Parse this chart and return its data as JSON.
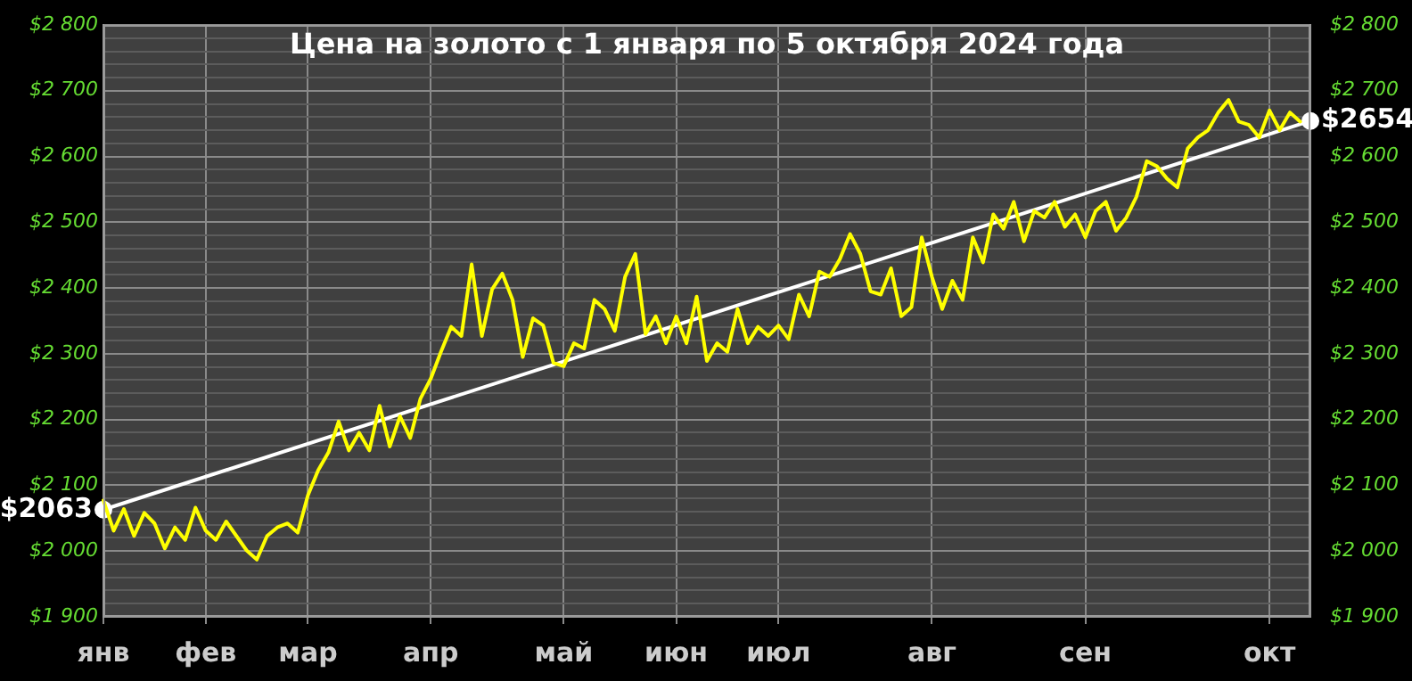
{
  "chart_data": {
    "type": "line",
    "title": "Цена на золото с 1 января по 5 октября 2024 года",
    "categories": [
      "янв",
      null,
      null,
      null,
      null,
      null,
      null,
      null,
      null,
      null,
      "фев",
      null,
      null,
      null,
      null,
      null,
      null,
      null,
      null,
      null,
      "мар",
      null,
      null,
      null,
      null,
      null,
      null,
      null,
      null,
      null,
      null,
      null,
      "апр",
      null,
      null,
      null,
      null,
      null,
      null,
      null,
      null,
      null,
      null,
      null,
      null,
      "май",
      null,
      null,
      null,
      null,
      null,
      null,
      null,
      null,
      null,
      null,
      "июн",
      null,
      null,
      null,
      null,
      null,
      null,
      null,
      null,
      null,
      "июл",
      null,
      null,
      null,
      null,
      null,
      null,
      null,
      null,
      null,
      null,
      null,
      null,
      null,
      null,
      "авг",
      null,
      null,
      null,
      null,
      null,
      null,
      null,
      null,
      null,
      null,
      null,
      null,
      null,
      null,
      "сен",
      null,
      null,
      null,
      null,
      null,
      null,
      null,
      null,
      null,
      null,
      null,
      null,
      null,
      null,
      null,
      null,
      null,
      "окт",
      null,
      null,
      null,
      null
    ],
    "series": [
      {
        "color": "#ffff00",
        "marker": "none",
        "values": [
          2077,
          2031,
          2064,
          2023,
          2058,
          2042,
          2004,
          2036,
          2017,
          2066,
          2031,
          2017,
          2045,
          2023,
          2001,
          1987,
          2023,
          2036,
          2042,
          2028,
          2085,
          2123,
          2150,
          2197,
          2153,
          2180,
          2153,
          2221,
          2159,
          2205,
          2172,
          2232,
          2262,
          2303,
          2341,
          2327,
          2436,
          2327,
          2398,
          2422,
          2382,
          2295,
          2354,
          2343,
          2286,
          2281,
          2316,
          2308,
          2382,
          2368,
          2335,
          2417,
          2452,
          2330,
          2357,
          2316,
          2357,
          2316,
          2387,
          2289,
          2316,
          2303,
          2368,
          2316,
          2341,
          2327,
          2343,
          2322,
          2390,
          2357,
          2425,
          2417,
          2444,
          2482,
          2452,
          2395,
          2390,
          2430,
          2357,
          2371,
          2477,
          2417,
          2368,
          2411,
          2382,
          2477,
          2439,
          2512,
          2490,
          2531,
          2471,
          2517,
          2507,
          2531,
          2493,
          2512,
          2477,
          2517,
          2531,
          2487,
          2507,
          2539,
          2593,
          2585,
          2566,
          2553,
          2612,
          2629,
          2640,
          2667,
          2686,
          2653,
          2648,
          2629,
          2670,
          2640,
          2667,
          2653,
          null
        ]
      },
      {
        "type": "line",
        "color": "#ffffff",
        "marker": "circle",
        "values": [
          2063,
          null,
          null,
          null,
          null,
          null,
          null,
          null,
          null,
          null,
          null,
          null,
          null,
          null,
          null,
          null,
          null,
          null,
          null,
          null,
          null,
          null,
          null,
          null,
          null,
          null,
          null,
          null,
          null,
          null,
          null,
          null,
          null,
          null,
          null,
          null,
          null,
          null,
          null,
          null,
          null,
          null,
          null,
          null,
          null,
          null,
          null,
          null,
          null,
          null,
          null,
          null,
          null,
          null,
          null,
          null,
          null,
          null,
          null,
          null,
          null,
          null,
          null,
          null,
          null,
          null,
          null,
          null,
          null,
          null,
          null,
          null,
          null,
          null,
          null,
          null,
          null,
          null,
          null,
          null,
          null,
          null,
          null,
          null,
          null,
          null,
          null,
          null,
          null,
          null,
          null,
          null,
          null,
          null,
          null,
          null,
          null,
          null,
          null,
          null,
          null,
          null,
          null,
          null,
          null,
          null,
          null,
          null,
          null,
          null,
          null,
          null,
          null,
          null,
          null,
          null,
          null,
          null,
          2654
        ],
        "value_labels": [
          "$2063",
          null,
          null,
          null,
          null,
          null,
          null,
          null,
          null,
          null,
          null,
          null,
          null,
          null,
          null,
          null,
          null,
          null,
          null,
          null,
          null,
          null,
          null,
          null,
          null,
          null,
          null,
          null,
          null,
          null,
          null,
          null,
          null,
          null,
          null,
          null,
          null,
          null,
          null,
          null,
          null,
          null,
          null,
          null,
          null,
          null,
          null,
          null,
          null,
          null,
          null,
          null,
          null,
          null,
          null,
          null,
          null,
          null,
          null,
          null,
          null,
          null,
          null,
          null,
          null,
          null,
          null,
          null,
          null,
          null,
          null,
          null,
          null,
          null,
          null,
          null,
          null,
          null,
          null,
          null,
          null,
          null,
          null,
          null,
          null,
          null,
          null,
          null,
          null,
          null,
          null,
          null,
          null,
          null,
          null,
          null,
          null,
          null,
          null,
          null,
          null,
          null,
          null,
          null,
          null,
          null,
          null,
          null,
          null,
          null,
          null,
          null,
          null,
          null,
          null,
          null,
          null,
          null,
          "$2654"
        ]
      }
    ],
    "ylim": [
      1900,
      2800
    ],
    "yticks": [
      {
        "value": 1900,
        "label": "$1 900"
      },
      {
        "value": 1920,
        "label": null
      },
      {
        "value": 1940,
        "label": null
      },
      {
        "value": 1960,
        "label": null
      },
      {
        "value": 1980,
        "label": null
      },
      {
        "value": 2000,
        "label": "$2 000"
      },
      {
        "value": 2020,
        "label": null
      },
      {
        "value": 2040,
        "label": null
      },
      {
        "value": 2060,
        "label": null
      },
      {
        "value": 2080,
        "label": null
      },
      {
        "value": 2100,
        "label": "$2 100"
      },
      {
        "value": 2120,
        "label": null
      },
      {
        "value": 2140,
        "label": null
      },
      {
        "value": 2160,
        "label": null
      },
      {
        "value": 2180,
        "label": null
      },
      {
        "value": 2200,
        "label": "$2 200"
      },
      {
        "value": 2220,
        "label": null
      },
      {
        "value": 2240,
        "label": null
      },
      {
        "value": 2260,
        "label": null
      },
      {
        "value": 2280,
        "label": null
      },
      {
        "value": 2300,
        "label": "$2 300"
      },
      {
        "value": 2320,
        "label": null
      },
      {
        "value": 2340,
        "label": null
      },
      {
        "value": 2360,
        "label": null
      },
      {
        "value": 2380,
        "label": null
      },
      {
        "value": 2400,
        "label": "$2 400"
      },
      {
        "value": 2420,
        "label": null
      },
      {
        "value": 2440,
        "label": null
      },
      {
        "value": 2460,
        "label": null
      },
      {
        "value": 2480,
        "label": null
      },
      {
        "value": 2500,
        "label": "$2 500"
      },
      {
        "value": 2520,
        "label": null
      },
      {
        "value": 2540,
        "label": null
      },
      {
        "value": 2560,
        "label": null
      },
      {
        "value": 2580,
        "label": null
      },
      {
        "value": 2600,
        "label": "$2 600"
      },
      {
        "value": 2620,
        "label": null
      },
      {
        "value": 2640,
        "label": null
      },
      {
        "value": 2660,
        "label": null
      },
      {
        "value": 2680,
        "label": null
      },
      {
        "value": 2700,
        "label": "$2 700"
      },
      {
        "value": 2720,
        "label": null
      },
      {
        "value": 2740,
        "label": null
      },
      {
        "value": 2760,
        "label": null
      },
      {
        "value": 2780,
        "label": null
      },
      {
        "value": 2800,
        "label": "$2 800"
      }
    ],
    "y2lim": [
      1900,
      2800
    ],
    "y2ticks": [
      {
        "value": 1900,
        "label": "$1 900"
      },
      {
        "value": 2000,
        "label": "$2 000"
      },
      {
        "value": 2100,
        "label": "$2 100"
      },
      {
        "value": 2200,
        "label": "$2 200"
      },
      {
        "value": 2300,
        "label": "$2 300"
      },
      {
        "value": 2400,
        "label": "$2 400"
      },
      {
        "value": 2500,
        "label": "$2 500"
      },
      {
        "value": 2600,
        "label": "$2 600"
      },
      {
        "value": 2700,
        "label": "$2 700"
      },
      {
        "value": 2800,
        "label": "$2 800"
      }
    ],
    "grid": true,
    "legend": false
  }
}
